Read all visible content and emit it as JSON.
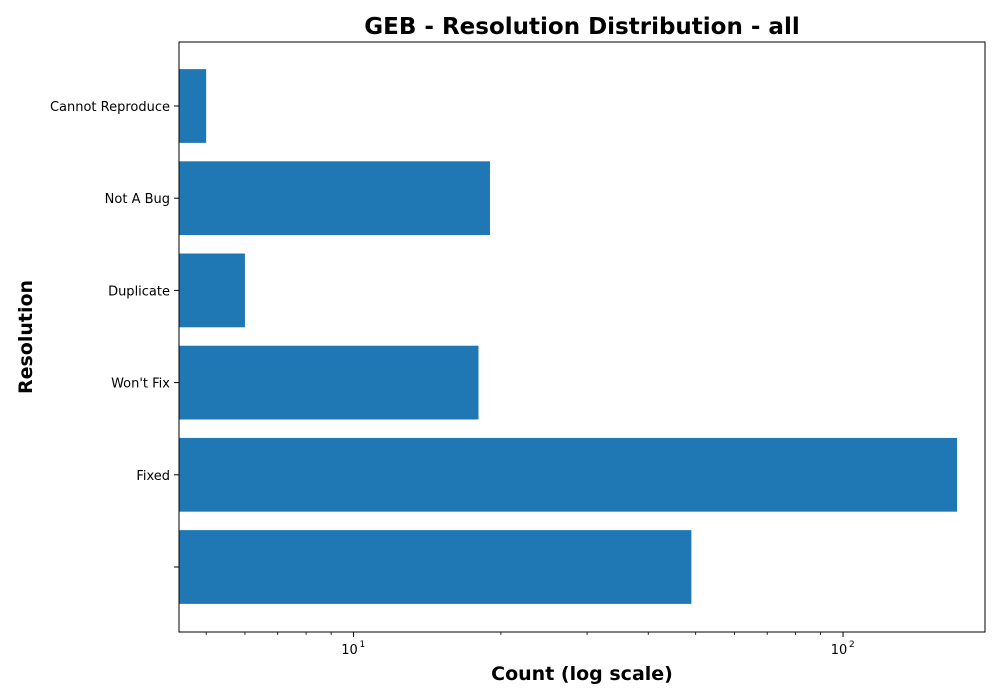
{
  "chart_data": {
    "type": "bar",
    "orientation": "horizontal",
    "title": "GEB - Resolution Distribution - all",
    "xlabel": "Count (log scale)",
    "ylabel": "Resolution",
    "x_scale": "log",
    "xlim": [
      4.4,
      195
    ],
    "x_ticks": [
      {
        "value": 10,
        "base": "10",
        "exponent": "1"
      },
      {
        "value": 100,
        "base": "10",
        "exponent": "2"
      }
    ],
    "categories": [
      "",
      "Fixed",
      "Won't Fix",
      "Duplicate",
      "Not A Bug",
      "Cannot Reproduce"
    ],
    "values": [
      49,
      171,
      18,
      6,
      19,
      5
    ],
    "bar_color": "#1f77b4",
    "grid": false,
    "legend": "none"
  }
}
